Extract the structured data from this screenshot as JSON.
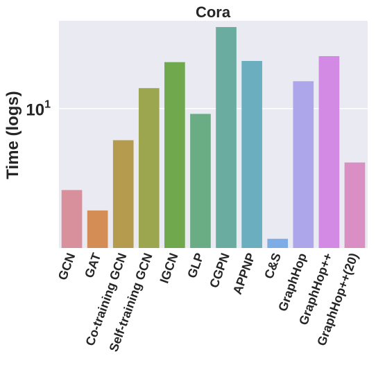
{
  "chart_data": {
    "type": "bar",
    "title": "Cora",
    "xlabel": "",
    "ylabel": "Time (logs)",
    "yscale": "log",
    "ylim": [
      1.5,
      33
    ],
    "yticks": [
      {
        "base": "10",
        "exp": "1",
        "value": 10
      }
    ],
    "grid": true,
    "categories": [
      "GCN",
      "GAT",
      "Co-training GCN",
      "Self-training GCN",
      "IGCN",
      "GLP",
      "CGPN",
      "APPNP",
      "C&S",
      "GraphHop",
      "GraphHop++",
      "GraphHop++(20)"
    ],
    "values": [
      3.3,
      2.5,
      6.5,
      13.2,
      18.8,
      9.3,
      30.3,
      19.1,
      1.7,
      14.5,
      20.4,
      4.8
    ],
    "colors": [
      "#d8909c",
      "#d48d55",
      "#b49b4d",
      "#9ba64e",
      "#70a84e",
      "#6aac83",
      "#6aaca0",
      "#6aaec0",
      "#7eace6",
      "#ada6eb",
      "#d28ae4",
      "#d98fc4"
    ]
  }
}
